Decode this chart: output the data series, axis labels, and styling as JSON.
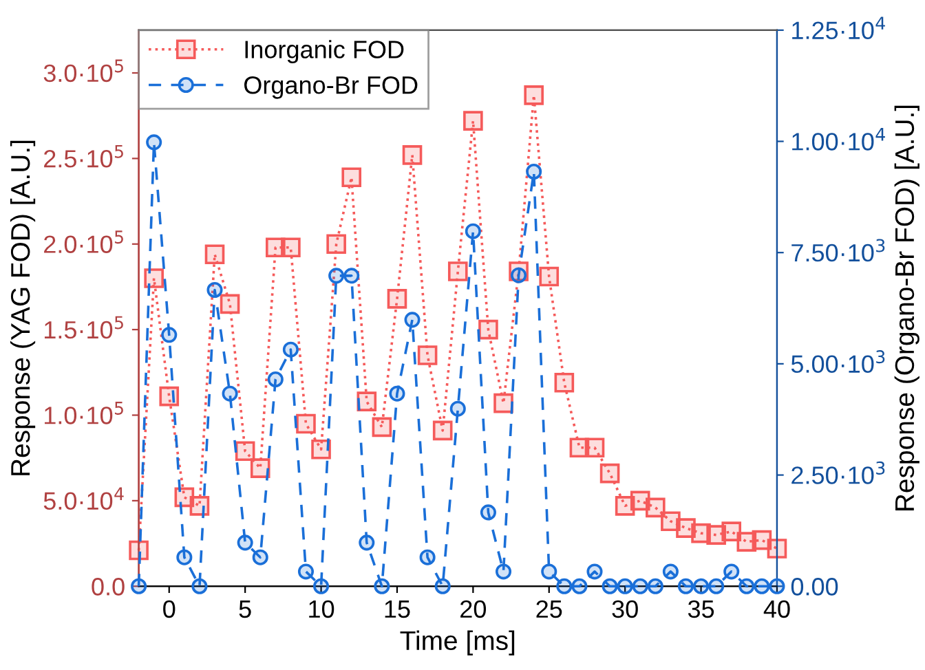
{
  "chart_data": {
    "type": "line",
    "xlabel": "Time [ms]",
    "ylabel": "Response (YAG FOD) [A.U.]",
    "y2label": "Response (Organo-Br FOD) [A.U.]",
    "x": [
      -2,
      -1,
      0,
      1,
      2,
      3,
      4,
      5,
      6,
      7,
      8,
      9,
      10,
      11,
      12,
      13,
      14,
      15,
      16,
      17,
      18,
      19,
      20,
      21,
      22,
      23,
      24,
      25,
      26,
      27,
      28,
      29,
      30,
      31,
      32,
      33,
      34,
      35,
      36,
      37,
      38,
      39,
      40
    ],
    "series": [
      {
        "name": "Inorganic FOD",
        "color": "#f55a5a",
        "marker": "square",
        "line_style": "dotted",
        "axis": "y",
        "values": [
          21000,
          180000,
          111000,
          52000,
          47000,
          194000,
          165000,
          79000,
          69000,
          198000,
          198000,
          95000,
          80000,
          200000,
          239000,
          108000,
          93000,
          168000,
          252000,
          135000,
          91000,
          184000,
          272000,
          150000,
          107000,
          184000,
          287000,
          181000,
          119000,
          81000,
          81000,
          66000,
          47000,
          50000,
          46000,
          38000,
          34000,
          31000,
          30000,
          32000,
          26000,
          27000,
          22000
        ]
      },
      {
        "name": "Organo-Br FOD",
        "color": "#1a6fd8",
        "marker": "circle",
        "line_style": "dashed",
        "axis": "y2",
        "values": [
          0,
          9980,
          5650,
          650,
          0,
          6660,
          4330,
          980,
          650,
          4650,
          5320,
          330,
          0,
          6980,
          6980,
          980,
          0,
          4330,
          5990,
          650,
          0,
          3990,
          7980,
          1660,
          330,
          6990,
          9320,
          330,
          0,
          0,
          330,
          0,
          0,
          0,
          0,
          330,
          0,
          0,
          0,
          330,
          0,
          0,
          0
        ]
      }
    ],
    "xlim": [
      -2,
      40
    ],
    "xticks": [
      0,
      5,
      10,
      15,
      20,
      25,
      30,
      35,
      40
    ],
    "ylim": [
      0,
      325000
    ],
    "yticks": [
      {
        "value": 0,
        "label": "0.0"
      },
      {
        "value": 50000,
        "label": "5.0·10$^{4}$"
      },
      {
        "value": 100000,
        "label": "1.0·10$^{5}$"
      },
      {
        "value": 150000,
        "label": "1.5·10$^{5}$"
      },
      {
        "value": 200000,
        "label": "2.0·10$^{5}$"
      },
      {
        "value": 250000,
        "label": "2.5·10$^{5}$"
      },
      {
        "value": 300000,
        "label": "3.0·10$^{5}$"
      }
    ],
    "y2lim": [
      0,
      12500
    ],
    "y2ticks": [
      {
        "value": 0,
        "label": "0.00"
      },
      {
        "value": 2500,
        "label": "2.50·10$^{3}$"
      },
      {
        "value": 5000,
        "label": "5.00·10$^{3}$"
      },
      {
        "value": 7500,
        "label": "7.50·10$^{3}$"
      },
      {
        "value": 10000,
        "label": "1.00·10$^{4}$"
      },
      {
        "value": 12500,
        "label": "1.25·10$^{4}$"
      }
    ],
    "grid": false,
    "legend": "top left"
  }
}
